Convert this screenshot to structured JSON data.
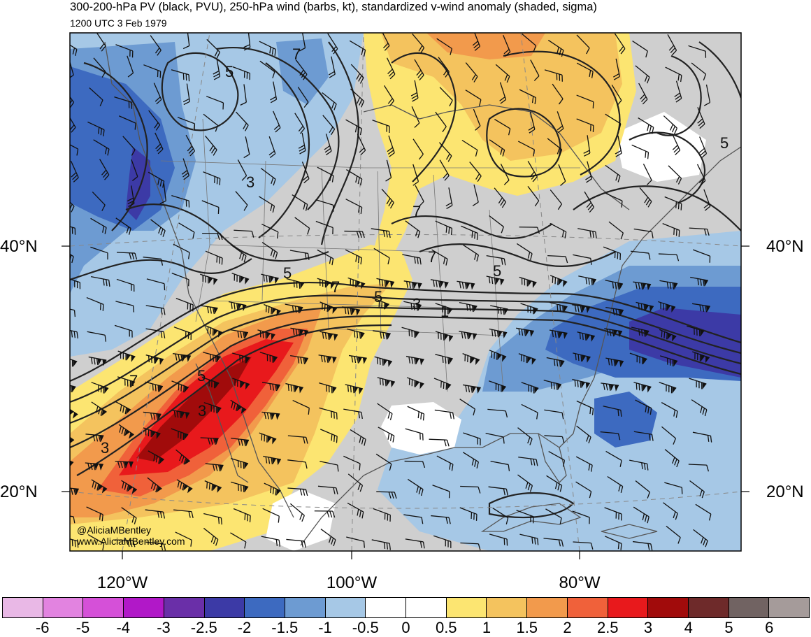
{
  "title": "300-200-hPa PV (black, PVU), 250-hPa wind (barbs, kt), standardized v-wind anomaly (shaded, sigma)",
  "subtitle": "1200 UTC 3 Feb 1979",
  "credit_handle": "@AliciaMBentley",
  "credit_url": "www.AliciaMBentley.com",
  "lat_labels": {
    "lat40_left": "40°N",
    "lat40_right": "40°N",
    "lat20_left": "20°N",
    "lat20_right": "20°N"
  },
  "lon_labels": {
    "lon120": "120°W",
    "lon100": "100°W",
    "lon80": "80°W"
  },
  "contour_labels": [
    "5",
    "7",
    "3",
    "5",
    "7",
    "7",
    "5",
    "3",
    "7",
    "5",
    "3",
    "1",
    "7",
    "3",
    "5",
    "5"
  ],
  "colorbar": {
    "labels": [
      "-6",
      "-5",
      "-4",
      "-3",
      "-2.5",
      "-2",
      "-1.5",
      "-1",
      "-0.5",
      "0",
      "0.5",
      "1",
      "1.5",
      "2",
      "2.5",
      "3",
      "4",
      "5",
      "6"
    ],
    "colors": [
      "#e9b8e6",
      "#e283e0",
      "#d550d8",
      "#b118c8",
      "#6a2fa8",
      "#3c3aa6",
      "#3d6ac0",
      "#6d9bd2",
      "#a6c8e6",
      "#ffffff",
      "#ffffff",
      "#fce571",
      "#f4c35e",
      "#f29a4c",
      "#f0613a",
      "#e8191c",
      "#a10b0b",
      "#6e2a2a",
      "#716362",
      "#a59b9a"
    ]
  },
  "shading_colors": {
    "gray": "#cfcfcf",
    "light_blue": "#a6c8e6",
    "mid_blue": "#6d9bd2",
    "blue": "#3d6ac0",
    "dark_blue": "#3c3aa6",
    "yellow": "#fce571",
    "light_orange": "#f4c35e",
    "orange": "#f29a4c",
    "red_orange": "#f0613a",
    "red": "#e8191c",
    "dark_red": "#a10b0b"
  }
}
